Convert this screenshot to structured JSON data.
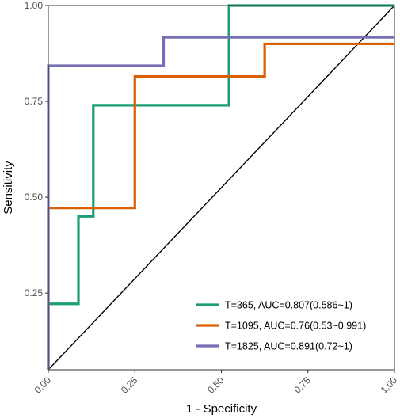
{
  "chart_data": {
    "type": "line",
    "title": "",
    "xlabel": "1 - Specificity",
    "ylabel": "Sensitivity",
    "xlim": [
      0,
      1
    ],
    "ylim": [
      0.05,
      1
    ],
    "x_ticks": [
      0,
      0.25,
      0.5,
      0.75,
      1
    ],
    "x_tick_labels": [
      "0.00",
      "0.25",
      "0.50",
      "0.75",
      "1.00"
    ],
    "y_ticks": [
      0.25,
      0.5,
      0.75,
      1
    ],
    "y_tick_labels": [
      "0.25",
      "0.50",
      "0.75",
      "1.00"
    ],
    "grid": false,
    "legend_position": "bottom-right",
    "reference_line": {
      "from": [
        0,
        0.05
      ],
      "to": [
        1,
        1
      ],
      "color": "#000000"
    },
    "series": [
      {
        "name": "T=365, AUC=0.807(0.586~1)",
        "color": "#1b9e77",
        "step": true,
        "x": [
          0,
          0,
          0.087,
          0.087,
          0.13,
          0.13,
          0.522,
          0.522,
          1
        ],
        "y": [
          0.05,
          0.222,
          0.222,
          0.45,
          0.45,
          0.74,
          0.74,
          1.0,
          1.0
        ]
      },
      {
        "name": "T=1095, AUC=0.76(0.53~0.991)",
        "color": "#d95f02",
        "step": true,
        "x": [
          0,
          0,
          0.25,
          0.25,
          0.625,
          0.625,
          1
        ],
        "y": [
          0.05,
          0.472,
          0.472,
          0.815,
          0.815,
          0.9,
          0.9
        ]
      },
      {
        "name": "T=1825, AUC=0.891(0.72~1)",
        "color": "#7570b3",
        "step": true,
        "x": [
          0,
          0,
          0.333,
          0.333,
          1
        ],
        "y": [
          0.05,
          0.843,
          0.843,
          0.917,
          0.917
        ]
      }
    ]
  }
}
